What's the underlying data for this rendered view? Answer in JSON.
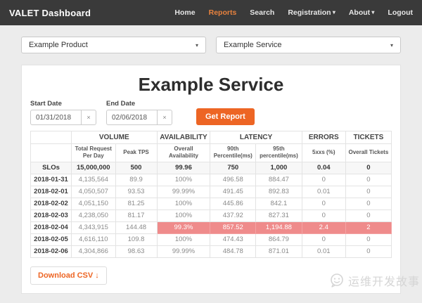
{
  "navbar": {
    "brand": "VALET Dashboard",
    "items": [
      {
        "label": "Home",
        "active": false,
        "caret": false
      },
      {
        "label": "Reports",
        "active": true,
        "caret": false
      },
      {
        "label": "Search",
        "active": false,
        "caret": false
      },
      {
        "label": "Registration",
        "active": false,
        "caret": true
      },
      {
        "label": "About",
        "active": false,
        "caret": true
      },
      {
        "label": "Logout",
        "active": false,
        "caret": false
      }
    ]
  },
  "filters": {
    "product_select_value": "Example Product",
    "service_select_value": "Example Service"
  },
  "report": {
    "title": "Example Service",
    "start_date_label": "Start Date",
    "start_date_value": "01/31/2018",
    "end_date_label": "End Date",
    "end_date_value": "02/06/2018",
    "clear_label": "×",
    "get_report_label": "Get Report",
    "download_csv_label": "Download CSV ↓"
  },
  "table": {
    "groups": [
      {
        "label": "",
        "span": 1
      },
      {
        "label": "VOLUME",
        "span": 2
      },
      {
        "label": "AVAILABILITY",
        "span": 1
      },
      {
        "label": "LATENCY",
        "span": 2
      },
      {
        "label": "ERRORS",
        "span": 1
      },
      {
        "label": "TICKETS",
        "span": 1
      }
    ],
    "columns": [
      "",
      "Total Request Per Day",
      "Peak TPS",
      "Overall Availability",
      "90th Percentile(ms)",
      "95th percentile(ms)",
      "5xxs (%)",
      "Overall Tickets"
    ],
    "col_widths": [
      "11.3%",
      "12.2%",
      "11.5%",
      "14.8%",
      "12.6%",
      "12.8%",
      "12.1%",
      "12.7%"
    ],
    "rows": [
      {
        "label": "SLOs",
        "cells": [
          "15,000,000",
          "500",
          "99.96",
          "750",
          "1,000",
          "0.04",
          "0"
        ],
        "slo": true
      },
      {
        "label": "2018-01-31",
        "cells": [
          "4,135,564",
          "89.9",
          "100%",
          "496.58",
          "884.47",
          "0",
          "0"
        ]
      },
      {
        "label": "2018-02-01",
        "cells": [
          "4,050,507",
          "93.53",
          "99.99%",
          "491.45",
          "892.83",
          "0.01",
          "0"
        ]
      },
      {
        "label": "2018-02-02",
        "cells": [
          "4,051,150",
          "81.25",
          "100%",
          "445.86",
          "842.1",
          "0",
          "0"
        ]
      },
      {
        "label": "2018-02-03",
        "cells": [
          "4,238,050",
          "81.17",
          "100%",
          "437.92",
          "827.31",
          "0",
          "0"
        ]
      },
      {
        "label": "2018-02-04",
        "cells": [
          "4,343,915",
          "144.48",
          "99.3%",
          "857.52",
          "1,194.88",
          "2.4",
          "2"
        ],
        "highlight_from": 2
      },
      {
        "label": "2018-02-05",
        "cells": [
          "4,616,110",
          "109.8",
          "100%",
          "474.43",
          "864.79",
          "0",
          "0"
        ]
      },
      {
        "label": "2018-02-06",
        "cells": [
          "4,304,866",
          "98.63",
          "99.99%",
          "484.78",
          "871.01",
          "0.01",
          "0"
        ]
      }
    ]
  },
  "watermark": {
    "text": "运维开发故事"
  },
  "icons": {
    "caret_down": "▾",
    "select_caret": "▾"
  },
  "colors": {
    "accent_orange": "#ed6524",
    "nav_active_orange": "#e8823e",
    "alert_red": "#ef8b8b",
    "navbar_bg": "#3a3a3a",
    "page_bg": "#ececec"
  }
}
